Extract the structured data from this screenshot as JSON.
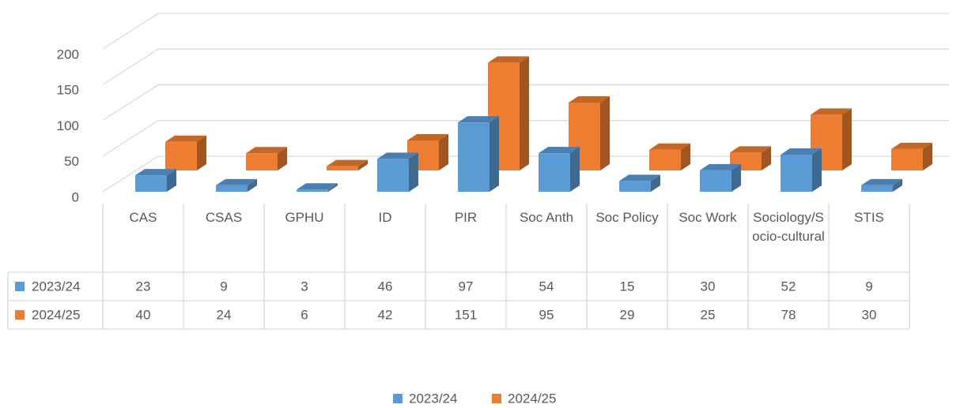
{
  "chart_data": {
    "type": "bar3d",
    "categories": [
      "CAS",
      "CSAS",
      "GPHU",
      "ID",
      "PIR",
      "Soc Anth",
      "Soc Policy",
      "Soc Work",
      "Sociology/Socio-cultural",
      "STIS"
    ],
    "series": [
      {
        "name": "2023/24",
        "color": "#5b9bd5",
        "values": [
          23,
          9,
          3,
          46,
          97,
          54,
          15,
          30,
          52,
          9
        ]
      },
      {
        "name": "2024/25",
        "color": "#ed7d31",
        "values": [
          40,
          24,
          6,
          42,
          151,
          95,
          29,
          25,
          78,
          30
        ]
      }
    ],
    "ylim": [
      0,
      200
    ],
    "yticks": [
      0,
      50,
      100,
      150,
      200
    ],
    "grid": true,
    "legend": "bottom",
    "data_table": true
  }
}
